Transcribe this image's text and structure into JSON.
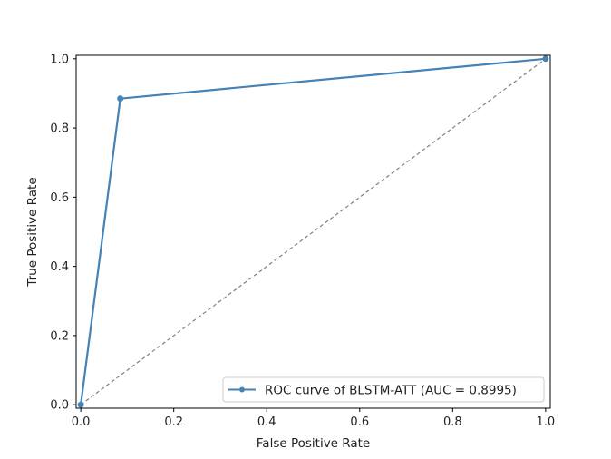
{
  "chart_data": {
    "type": "line",
    "title": "",
    "xlabel": "False Positive Rate",
    "ylabel": "True Positive Rate",
    "xlim": [
      -0.01,
      1.01
    ],
    "ylim": [
      -0.01,
      1.01
    ],
    "xticks": [
      0.0,
      0.2,
      0.4,
      0.6,
      0.8,
      1.0
    ],
    "xtick_labels": [
      "0.0",
      "0.2",
      "0.4",
      "0.6",
      "0.8",
      "1.0"
    ],
    "yticks": [
      0.0,
      0.2,
      0.4,
      0.6,
      0.8,
      1.0
    ],
    "ytick_labels": [
      "0.0",
      "0.2",
      "0.4",
      "0.6",
      "0.8",
      "1.0"
    ],
    "grid": false,
    "legend_position": "lower-right",
    "series": [
      {
        "name": "ROC curve of BLSTM-ATT (AUC = 0.8995)",
        "x": [
          0.0,
          0.085,
          1.0
        ],
        "y": [
          0.0,
          0.885,
          1.0
        ],
        "color": "#4682b4",
        "marker": "circle",
        "style": "solid"
      },
      {
        "x": [
          0.0,
          1.0
        ],
        "y": [
          0.0,
          1.0
        ],
        "color": "#808080",
        "style": "dashed"
      }
    ]
  }
}
